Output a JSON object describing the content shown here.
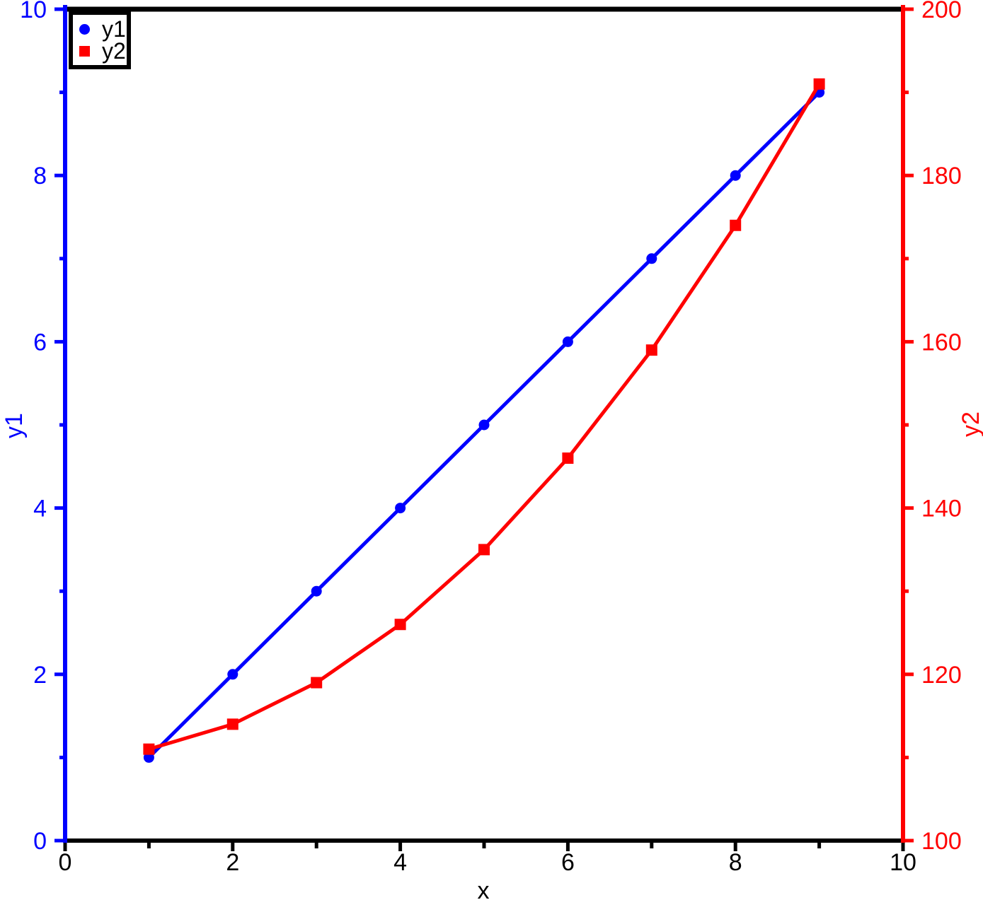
{
  "chart_data": {
    "type": "line",
    "title": "",
    "xlabel": "x",
    "ylabel_left": "y1",
    "ylabel_right": "y2",
    "grid": false,
    "background_color": "#ffffff",
    "frame_color": "#000000",
    "x": [
      1,
      2,
      3,
      4,
      5,
      6,
      7,
      8,
      9
    ],
    "series": [
      {
        "name": "y1",
        "axis": "left",
        "color": "#0000ff",
        "marker": "circle",
        "values": [
          1,
          2,
          3,
          4,
          5,
          6,
          7,
          8,
          9
        ]
      },
      {
        "name": "y2",
        "axis": "right",
        "color": "#ff0000",
        "marker": "square",
        "values": [
          111,
          114,
          119,
          126,
          135,
          146,
          159,
          174,
          191
        ]
      }
    ],
    "x_axis": {
      "min": 0,
      "max": 10,
      "major_ticks": [
        0,
        2,
        4,
        6,
        8,
        10
      ],
      "minor_ticks": [
        1,
        3,
        5,
        7,
        9
      ],
      "tick_labels": [
        "0",
        "2",
        "4",
        "6",
        "8",
        "10"
      ],
      "color": "#000000"
    },
    "y_left_axis": {
      "min": 0,
      "max": 10,
      "major_ticks": [
        0,
        2,
        4,
        6,
        8,
        10
      ],
      "minor_ticks": [
        1,
        3,
        5,
        7,
        9
      ],
      "tick_labels": [
        "0",
        "2",
        "4",
        "6",
        "8",
        "10"
      ],
      "color": "#0000ff"
    },
    "y_right_axis": {
      "min": 100,
      "max": 200,
      "major_ticks": [
        100,
        120,
        140,
        160,
        180,
        200
      ],
      "minor_ticks": [
        110,
        130,
        150,
        170,
        190
      ],
      "tick_labels": [
        "100",
        "120",
        "140",
        "160",
        "180",
        "200"
      ],
      "color": "#ff0000"
    },
    "legend": {
      "position": "top-left",
      "entries": [
        {
          "label": "y1",
          "color": "#0000ff",
          "marker": "circle"
        },
        {
          "label": "y2",
          "color": "#ff0000",
          "marker": "square"
        }
      ]
    }
  }
}
